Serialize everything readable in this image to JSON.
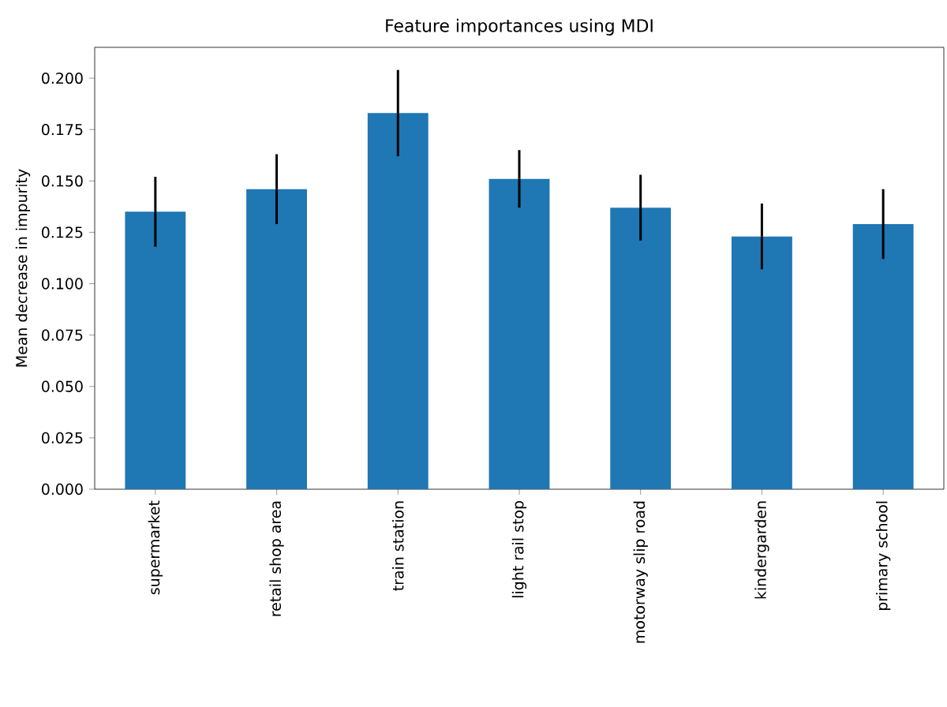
{
  "chart_data": {
    "type": "bar",
    "title": "Feature importances using MDI",
    "ylabel": "Mean decrease in impurity",
    "categories": [
      "supermarket",
      "retail shop area",
      "train station",
      "light rail stop",
      "motorway slip road",
      "kindergarden",
      "primary school"
    ],
    "values": [
      0.135,
      0.146,
      0.183,
      0.151,
      0.137,
      0.123,
      0.129
    ],
    "errors": [
      0.017,
      0.017,
      0.021,
      0.014,
      0.016,
      0.016,
      0.017
    ],
    "color": "#1f77b4",
    "ylim": [
      0,
      0.215
    ],
    "yticks": [
      {
        "value": 0,
        "label": "0.000"
      },
      {
        "value": 0.025,
        "label": "0.025"
      },
      {
        "value": 0.05,
        "label": "0.050"
      },
      {
        "value": 0.075,
        "label": "0.075"
      },
      {
        "value": 0.1,
        "label": "0.100"
      },
      {
        "value": 0.125,
        "label": "0.125"
      },
      {
        "value": 0.15,
        "label": "0.150"
      },
      {
        "value": 0.175,
        "label": "0.175"
      },
      {
        "value": 0.2,
        "label": "0.200"
      }
    ]
  }
}
